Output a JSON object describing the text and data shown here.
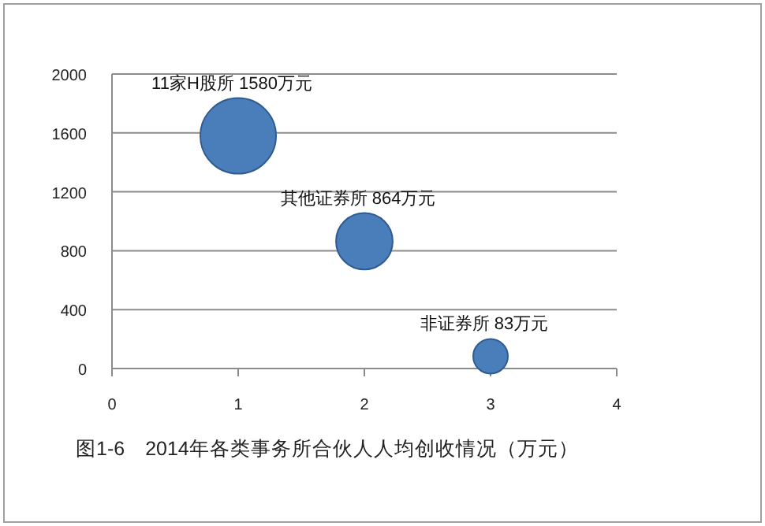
{
  "chart_data": {
    "type": "bubble",
    "title": "图1-6　2014年各类事务所合伙人人均创收情况（万元）",
    "x": [
      1,
      2,
      3
    ],
    "values": [
      1580,
      864,
      83
    ],
    "sizes": [
      1,
      0.56,
      0.21
    ],
    "color": "#4a7ebb",
    "value_labels": [
      "11家H股所 1580万元",
      "其他证券所 864万元",
      "非证券所 83万元"
    ],
    "xlim": [
      0,
      4
    ],
    "xticks": [
      0,
      1,
      2,
      3,
      4
    ],
    "ylim": [
      0,
      2000
    ],
    "yticks": [
      0,
      400,
      800,
      1200,
      1600,
      2000
    ],
    "grid": "y"
  }
}
